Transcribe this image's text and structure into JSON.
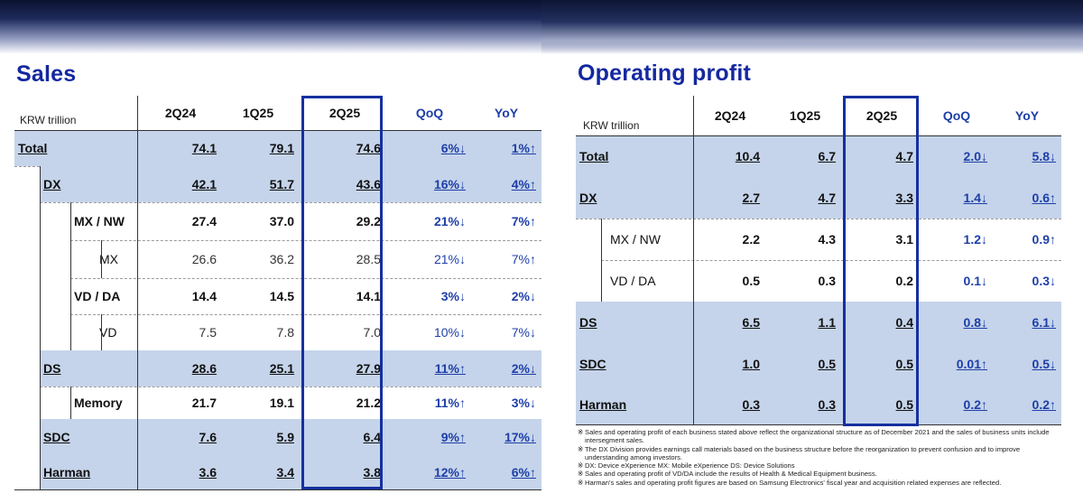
{
  "sales": {
    "title": "Sales",
    "unit": "KRW trillion",
    "columns": [
      "2Q24",
      "1Q25",
      "2Q25",
      "QoQ",
      "YoY"
    ],
    "rows": [
      {
        "label": "Total",
        "values": [
          "74.1",
          "79.1",
          "74.6",
          "6%↓",
          "1%↑"
        ]
      },
      {
        "label": "DX",
        "values": [
          "42.1",
          "51.7",
          "43.6",
          "16%↓",
          "4%↑"
        ]
      },
      {
        "label": "MX / NW",
        "values": [
          "27.4",
          "37.0",
          "29.2",
          "21%↓",
          "7%↑"
        ]
      },
      {
        "label": "MX",
        "values": [
          "26.6",
          "36.2",
          "28.5",
          "21%↓",
          "7%↑"
        ]
      },
      {
        "label": "VD / DA",
        "values": [
          "14.4",
          "14.5",
          "14.1",
          "3%↓",
          "2%↓"
        ]
      },
      {
        "label": "VD",
        "values": [
          "7.5",
          "7.8",
          "7.0",
          "10%↓",
          "7%↓"
        ]
      },
      {
        "label": "DS",
        "values": [
          "28.6",
          "25.1",
          "27.9",
          "11%↑",
          "2%↓"
        ]
      },
      {
        "label": "Memory",
        "values": [
          "21.7",
          "19.1",
          "21.2",
          "11%↑",
          "3%↓"
        ]
      },
      {
        "label": "SDC",
        "values": [
          "7.6",
          "5.9",
          "6.4",
          "9%↑",
          "17%↓"
        ]
      },
      {
        "label": "Harman",
        "values": [
          "3.6",
          "3.4",
          "3.8",
          "12%↑",
          "6%↑"
        ]
      }
    ]
  },
  "operating_profit": {
    "title": "Operating profit",
    "unit": "KRW trillion",
    "columns": [
      "2Q24",
      "1Q25",
      "2Q25",
      "QoQ",
      "YoY"
    ],
    "rows": [
      {
        "label": "Total",
        "values": [
          "10.4",
          "6.7",
          "4.7",
          "2.0↓",
          "5.8↓"
        ]
      },
      {
        "label": "DX",
        "values": [
          "2.7",
          "4.7",
          "3.3",
          "1.4↓",
          "0.6↑"
        ]
      },
      {
        "label": "MX / NW",
        "values": [
          "2.2",
          "4.3",
          "3.1",
          "1.2↓",
          "0.9↑"
        ]
      },
      {
        "label": "VD / DA",
        "values": [
          "0.5",
          "0.3",
          "0.2",
          "0.1↓",
          "0.3↓"
        ]
      },
      {
        "label": "DS",
        "values": [
          "6.5",
          "1.1",
          "0.4",
          "0.8↓",
          "6.1↓"
        ]
      },
      {
        "label": "SDC",
        "values": [
          "1.0",
          "0.5",
          "0.5",
          "0.01↑",
          "0.5↓"
        ]
      },
      {
        "label": "Harman",
        "values": [
          "0.3",
          "0.3",
          "0.5",
          "0.2↑",
          "0.2↑"
        ]
      }
    ]
  },
  "notes": {
    "mark": "※",
    "items": [
      "Sales and operating profit of each business stated above reflect the organizational structure  as of December 2021 and the sales of business units include intersegment sales.",
      "The DX Division provides earnings call materials based on the business structure before the reorganization to prevent confusion and to improve understanding among investors.",
      "DX: Device eXperience MX: Mobile eXperience DS: Device Solutions",
      "Sales and operating profit of VD/DA include the results of Health & Medical Equipment business.",
      "Harman's sales and operating profit figures are based on Samsung Electronics' fiscal year and acquisition related expenses  are reflected."
    ]
  },
  "colors": {
    "title_blue": "#1428a0",
    "pct_blue": "#1e3fa8",
    "row_highlight": "#c5d4ea",
    "box_border": "#1530a0"
  }
}
